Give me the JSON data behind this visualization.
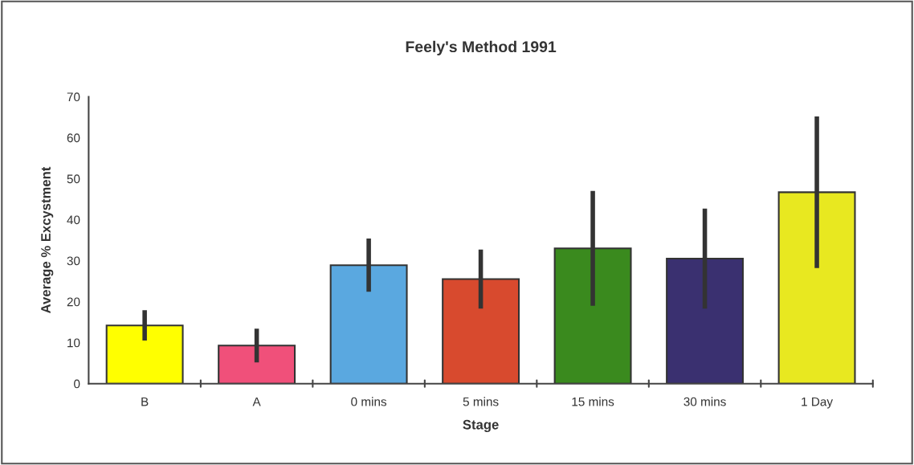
{
  "chart_data": {
    "type": "bar",
    "title": "Feely's Method 1991",
    "xlabel": "Stage",
    "ylabel": "Average % Excystment",
    "categories": [
      "B",
      "A",
      "0 mins",
      "5 mins",
      "15 mins",
      "30 mins",
      "1 Day"
    ],
    "values": [
      14.2,
      9.3,
      28.9,
      25.5,
      33.0,
      30.5,
      46.7
    ],
    "errors": [
      3.7,
      4.1,
      6.5,
      7.2,
      14,
      12.2,
      18.5
    ],
    "colors": [
      "#ffff00",
      "#f0507a",
      "#5aa8e0",
      "#d84a2e",
      "#3a8a1e",
      "#3a3070",
      "#e8e820"
    ],
    "ylim": [
      0,
      70
    ],
    "yticks": [
      0,
      10,
      20,
      30,
      40,
      50,
      60,
      70
    ],
    "grid": false,
    "legend": false
  }
}
